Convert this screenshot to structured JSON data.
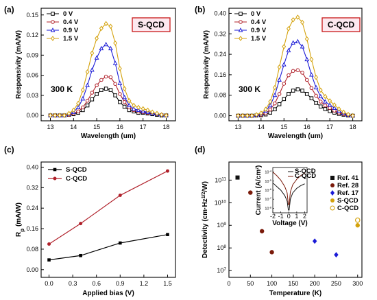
{
  "chart_data": [
    {
      "panel": "(a)",
      "type": "line",
      "tag": "S-QCD",
      "temperature_label": "300 K",
      "xlabel": "Wavelength (um)",
      "ylabel": "Responsivity (mA/W)",
      "xlim": [
        12.6,
        18.4
      ],
      "ylim": [
        -0.008,
        0.16
      ],
      "xticks": [
        13,
        14,
        15,
        16,
        17,
        18
      ],
      "yticks": [
        0.0,
        0.03,
        0.06,
        0.09,
        0.12,
        0.15
      ],
      "ytick_labels": [
        "0.00",
        "0.03",
        "0.06",
        "0.09",
        "0.12",
        "0.15"
      ],
      "legend_position": "top-left",
      "x": [
        13.0,
        13.2,
        13.4,
        13.6,
        13.8,
        14.0,
        14.2,
        14.4,
        14.6,
        14.8,
        15.0,
        15.2,
        15.4,
        15.6,
        15.8,
        16.0,
        16.2,
        16.4,
        16.6,
        16.8,
        17.0,
        17.2,
        17.4,
        17.6,
        17.8,
        18.0
      ],
      "series": [
        {
          "name": "0 V",
          "color": "#000000",
          "marker": "square",
          "values": [
            0.0,
            0.0,
            0.0,
            0.0,
            0.001,
            0.002,
            0.004,
            0.008,
            0.015,
            0.024,
            0.032,
            0.038,
            0.04,
            0.038,
            0.03,
            0.02,
            0.013,
            0.008,
            0.006,
            0.004,
            0.004,
            0.003,
            0.002,
            0.001,
            0.0,
            0.0
          ]
        },
        {
          "name": "0.4 V",
          "color": "#b0202a",
          "marker": "circle",
          "values": [
            0.0,
            0.0,
            0.0,
            0.0,
            0.001,
            0.003,
            0.006,
            0.012,
            0.022,
            0.034,
            0.045,
            0.053,
            0.058,
            0.057,
            0.047,
            0.032,
            0.02,
            0.012,
            0.008,
            0.006,
            0.005,
            0.004,
            0.003,
            0.002,
            0.001,
            0.0
          ]
        },
        {
          "name": "0.9 V",
          "color": "#1a1ad6",
          "marker": "triangle",
          "values": [
            0.0,
            0.0,
            0.0,
            0.0,
            0.002,
            0.005,
            0.012,
            0.025,
            0.045,
            0.068,
            0.086,
            0.1,
            0.106,
            0.1,
            0.078,
            0.048,
            0.027,
            0.015,
            0.01,
            0.008,
            0.006,
            0.005,
            0.003,
            0.002,
            0.001,
            0.0
          ]
        },
        {
          "name": "1.5 V",
          "color": "#d4a20c",
          "marker": "diamond",
          "values": [
            0.0,
            0.0,
            0.0,
            0.0,
            0.003,
            0.008,
            0.018,
            0.038,
            0.065,
            0.093,
            0.115,
            0.13,
            0.137,
            0.133,
            0.108,
            0.07,
            0.04,
            0.022,
            0.015,
            0.012,
            0.01,
            0.008,
            0.005,
            0.003,
            0.001,
            0.0
          ]
        }
      ]
    },
    {
      "panel": "(b)",
      "type": "line",
      "tag": "C-QCD",
      "temperature_label": "300 K",
      "xlabel": "Wavelength (um)",
      "ylabel": "Responsivity (mA/W)",
      "xlim": [
        12.6,
        18.4
      ],
      "ylim": [
        -0.02,
        0.42
      ],
      "xticks": [
        13,
        14,
        15,
        16,
        17,
        18
      ],
      "yticks": [
        0.0,
        0.08,
        0.16,
        0.24,
        0.32,
        0.4
      ],
      "ytick_labels": [
        "0.00",
        "0.08",
        "0.16",
        "0.24",
        "0.32",
        "0.40"
      ],
      "legend_position": "top-left",
      "x": [
        13.0,
        13.2,
        13.4,
        13.6,
        13.8,
        14.0,
        14.2,
        14.4,
        14.6,
        14.8,
        15.0,
        15.2,
        15.4,
        15.6,
        15.8,
        16.0,
        16.2,
        16.4,
        16.6,
        16.8,
        17.0,
        17.2,
        17.4,
        17.6,
        17.8,
        18.0
      ],
      "series": [
        {
          "name": "0 V",
          "color": "#000000",
          "marker": "square",
          "values": [
            0.0,
            0.0,
            0.0,
            0.0,
            0.001,
            0.002,
            0.005,
            0.012,
            0.025,
            0.045,
            0.065,
            0.085,
            0.098,
            0.103,
            0.098,
            0.085,
            0.068,
            0.05,
            0.036,
            0.026,
            0.018,
            0.012,
            0.007,
            0.004,
            0.001,
            0.0
          ]
        },
        {
          "name": "0.4 V",
          "color": "#b0202a",
          "marker": "circle",
          "values": [
            0.0,
            0.0,
            0.0,
            0.0,
            0.002,
            0.004,
            0.01,
            0.024,
            0.048,
            0.085,
            0.125,
            0.158,
            0.175,
            0.178,
            0.168,
            0.14,
            0.108,
            0.078,
            0.055,
            0.04,
            0.03,
            0.02,
            0.012,
            0.006,
            0.002,
            0.0
          ]
        },
        {
          "name": "0.9 V",
          "color": "#1a1ad6",
          "marker": "triangle",
          "values": [
            0.0,
            0.0,
            0.0,
            0.0,
            0.003,
            0.008,
            0.018,
            0.04,
            0.08,
            0.14,
            0.2,
            0.255,
            0.285,
            0.29,
            0.27,
            0.22,
            0.16,
            0.11,
            0.075,
            0.055,
            0.042,
            0.03,
            0.018,
            0.01,
            0.003,
            0.0
          ]
        },
        {
          "name": "1.5 V",
          "color": "#d4a20c",
          "marker": "diamond",
          "values": [
            0.0,
            0.0,
            0.0,
            0.0,
            0.004,
            0.01,
            0.025,
            0.055,
            0.11,
            0.19,
            0.27,
            0.34,
            0.375,
            0.385,
            0.365,
            0.3,
            0.22,
            0.15,
            0.1,
            0.075,
            0.058,
            0.042,
            0.026,
            0.014,
            0.005,
            0.0
          ]
        }
      ]
    },
    {
      "panel": "(c)",
      "type": "line",
      "xlabel": "Applied bias (V)",
      "ylabel_main": "R",
      "ylabel_sub": "p",
      "ylabel_unit": " (mA/W)",
      "xlim": [
        -0.1,
        1.6
      ],
      "ylim": [
        -0.03,
        0.42
      ],
      "xticks": [
        0.0,
        0.3,
        0.6,
        0.9,
        1.2,
        1.5
      ],
      "xtick_labels": [
        "0.0",
        "0.3",
        "0.6",
        "0.9",
        "1.2",
        "1.5"
      ],
      "yticks": [
        0.0,
        0.08,
        0.16,
        0.24,
        0.32,
        0.4
      ],
      "ytick_labels": [
        "0.00",
        "0.08",
        "0.16",
        "0.24",
        "0.32",
        "0.40"
      ],
      "legend_position": "top-left",
      "x": [
        0.0,
        0.4,
        0.9,
        1.5
      ],
      "series": [
        {
          "name": "S-QCD",
          "color": "#000000",
          "marker": "square",
          "values": [
            0.038,
            0.055,
            0.104,
            0.137
          ]
        },
        {
          "name": "C-QCD",
          "color": "#b0202a",
          "marker": "circle",
          "values": [
            0.1,
            0.18,
            0.29,
            0.385
          ]
        }
      ]
    },
    {
      "panel": "(d)",
      "type": "scatter",
      "xlabel": "Temperature (K)",
      "ylabel": "Detectivity (cm·Hz",
      "ylabel_sup": "1/2",
      "ylabel_end": "/W)",
      "xlim": [
        0,
        310
      ],
      "ylog": true,
      "ylim_exp": [
        6.7,
        11.8
      ],
      "xticks": [
        0,
        50,
        100,
        150,
        200,
        250,
        300
      ],
      "xtick_labels": [
        "0",
        "50",
        "100",
        "150",
        "200",
        "250",
        "300"
      ],
      "yticks_exp": [
        7,
        8,
        9,
        10,
        11
      ],
      "legend_position": "right",
      "series": [
        {
          "name": "Ref. 41",
          "color": "#111111",
          "marker": "square",
          "points": [
            [
              20,
              130000000000.0
            ]
          ]
        },
        {
          "name": "Ref. 28",
          "color": "#7a1a0a",
          "marker": "circle",
          "points": [
            [
              50,
              28000000000.0
            ],
            [
              77,
              550000000.0
            ],
            [
              100,
              65000000.0
            ]
          ]
        },
        {
          "name": "Ref. 17",
          "color": "#1a1ad6",
          "marker": "diamond",
          "points": [
            [
              200,
              200000000.0
            ],
            [
              250,
              50000000.0
            ]
          ]
        },
        {
          "name": "S-QCD",
          "color": "#d4a20c",
          "marker": "circle",
          "points": [
            [
              300,
              1000000000.0
            ]
          ]
        },
        {
          "name": "C-QCD",
          "color": "#d4a20c",
          "marker": "circle-open",
          "points": [
            [
              300,
              1700000000.0
            ]
          ]
        }
      ],
      "inset": {
        "xlabel": "Voltage (V)",
        "ylabel": "Current (A/cm",
        "ylabel_sup": "2",
        "ylabel_end": ")",
        "xlim": [
          -2,
          2.3
        ],
        "xticks": [
          -2,
          -1,
          0,
          1,
          2
        ],
        "xtick_labels": [
          "-2",
          "-1",
          "0",
          "1",
          "2"
        ],
        "ylim_exp": [
          -8.5,
          -3.5
        ],
        "yticks_exp": [
          -8,
          -7,
          -6,
          -5,
          -4
        ],
        "ytick_labels": [
          "10",
          "10",
          "10",
          "10",
          "10"
        ],
        "ytick_sups": [
          "-8",
          "-7",
          "-6",
          "-5",
          "-4"
        ],
        "series": [
          {
            "name": "S-QCD",
            "color": "#111111",
            "points": [
              [
                -2.0,
                -5.2
              ],
              [
                -1.5,
                -5.6
              ],
              [
                -1.0,
                -6.0
              ],
              [
                -0.5,
                -6.6
              ],
              [
                -0.2,
                -7.2
              ],
              [
                -0.05,
                -8.2
              ],
              [
                0.05,
                -8.2
              ],
              [
                0.2,
                -7.0
              ],
              [
                0.5,
                -6.3
              ],
              [
                1.0,
                -5.8
              ],
              [
                1.5,
                -5.5
              ],
              [
                2.0,
                -5.3
              ]
            ]
          },
          {
            "name": "C-QCD",
            "color": "#7a1a0a",
            "points": [
              [
                -2.0,
                -4.0
              ],
              [
                -1.5,
                -4.4
              ],
              [
                -1.0,
                -4.9
              ],
              [
                -0.5,
                -5.6
              ],
              [
                -0.2,
                -6.3
              ],
              [
                -0.05,
                -7.6
              ],
              [
                0.05,
                -7.6
              ],
              [
                0.2,
                -6.2
              ],
              [
                0.5,
                -5.4
              ],
              [
                1.0,
                -4.8
              ],
              [
                1.5,
                -4.4
              ],
              [
                2.0,
                -4.1
              ]
            ]
          }
        ]
      }
    }
  ]
}
